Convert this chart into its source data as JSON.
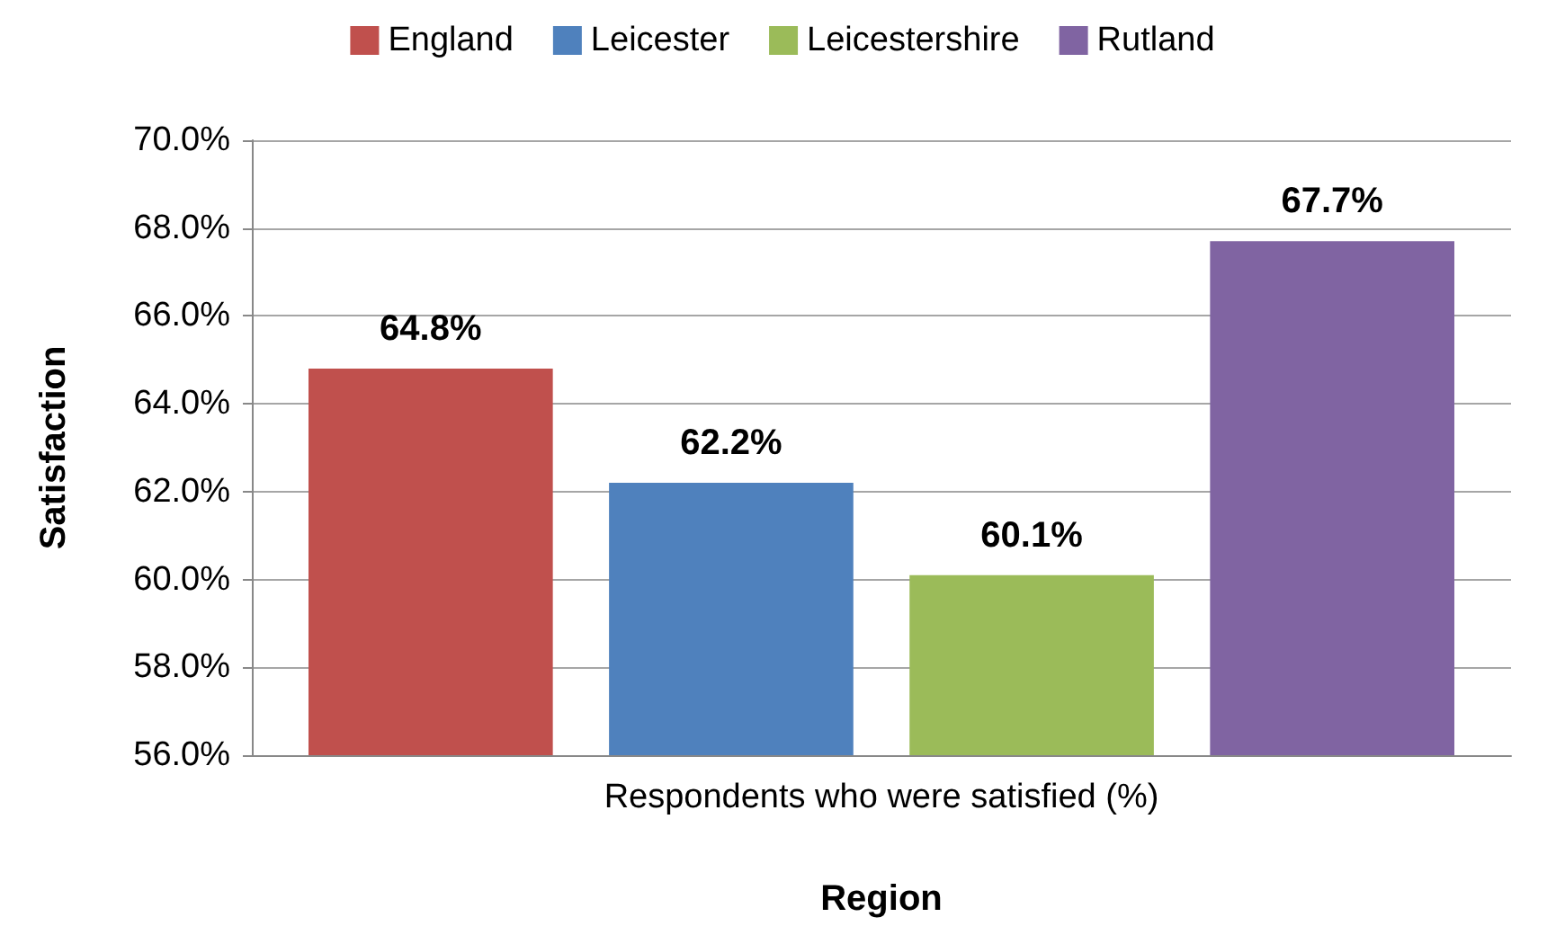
{
  "chart_data": {
    "type": "bar",
    "xlabel": "Region",
    "ylabel": "Satisfaction",
    "categories": [
      "Respondents who were satisfied (%)"
    ],
    "series": [
      {
        "name": "England",
        "color": "#c0504d",
        "values": [
          64.8
        ],
        "value_labels": [
          "64.8%"
        ]
      },
      {
        "name": "Leicester",
        "color": "#4f81bd",
        "values": [
          62.2
        ],
        "value_labels": [
          "62.2%"
        ]
      },
      {
        "name": "Leicestershire",
        "color": "#9bbb59",
        "values": [
          60.1
        ],
        "value_labels": [
          "60.1%"
        ]
      },
      {
        "name": "Rutland",
        "color": "#8064a2",
        "values": [
          67.7
        ],
        "value_labels": [
          "67.7%"
        ]
      }
    ],
    "ylim": [
      56,
      70
    ],
    "yticks": [
      {
        "value": 56,
        "label": "56.0%"
      },
      {
        "value": 58,
        "label": "58.0%"
      },
      {
        "value": 60,
        "label": "60.0%"
      },
      {
        "value": 62,
        "label": "62.0%"
      },
      {
        "value": 64,
        "label": "64.0%"
      },
      {
        "value": 66,
        "label": "66.0%"
      },
      {
        "value": 68,
        "label": "68.0%"
      },
      {
        "value": 70,
        "label": "70.0%"
      }
    ],
    "grid": "y",
    "legend": "top"
  }
}
